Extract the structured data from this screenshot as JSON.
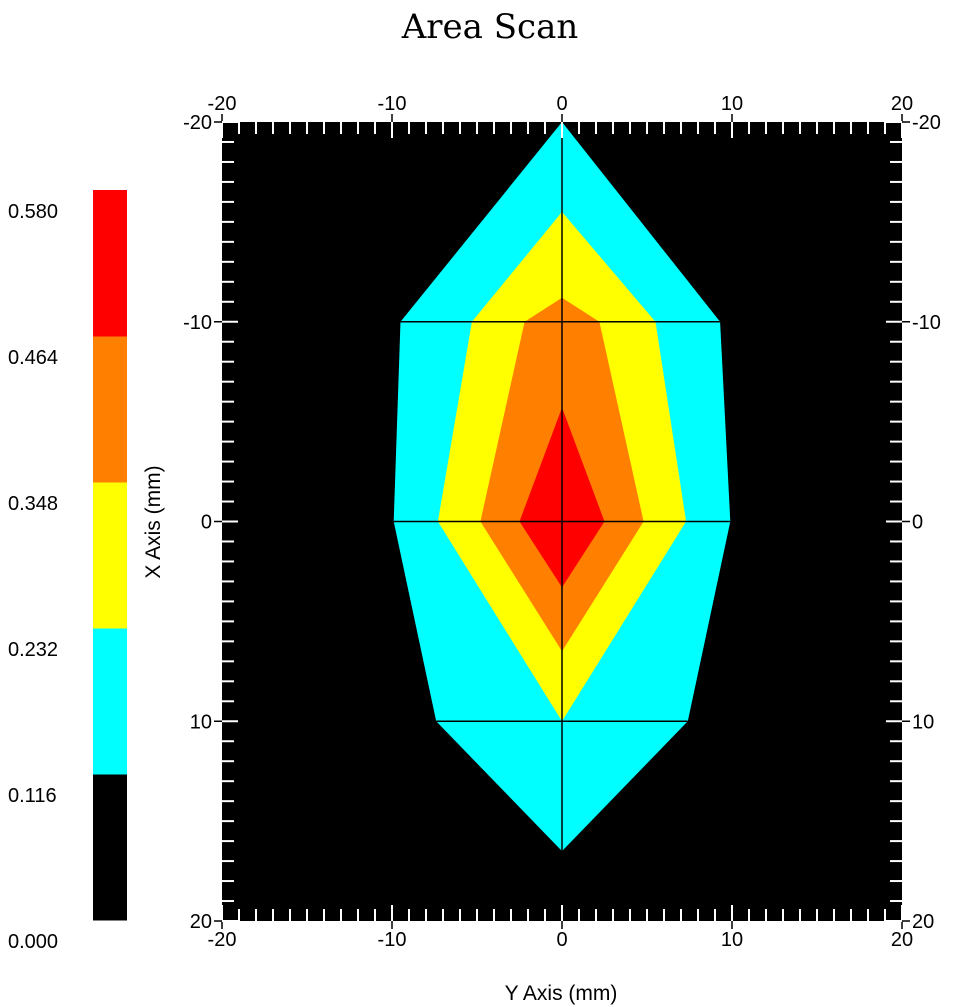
{
  "chart_data": {
    "type": "heatmap",
    "title": "Area Scan",
    "xlabel": "Y Axis (mm)",
    "ylabel": "X Axis (mm)",
    "xlim": [
      -20,
      20
    ],
    "ylim": [
      -20,
      20
    ],
    "y_inverted": true,
    "x_ticks": [
      "-20",
      "-10",
      "0",
      "10",
      "20"
    ],
    "y_ticks": [
      "-20",
      "-10",
      "0",
      "10",
      "20"
    ],
    "grid": {
      "x": [
        0
      ],
      "y": [
        -10,
        0,
        10
      ],
      "color": "#000000"
    },
    "colorbar": {
      "ticks": [
        "0.000",
        "0.116",
        "0.232",
        "0.348",
        "0.464",
        "0.580"
      ],
      "bands": [
        {
          "from": 0.0,
          "to": 0.116,
          "color": "#000000"
        },
        {
          "from": 0.116,
          "to": 0.232,
          "color": "#00FFFF"
        },
        {
          "from": 0.232,
          "to": 0.348,
          "color": "#FFFF00"
        },
        {
          "from": 0.348,
          "to": 0.464,
          "color": "#FF8000"
        },
        {
          "from": 0.464,
          "to": 0.58,
          "color": "#FF0000"
        }
      ]
    },
    "background_color": "#000000",
    "contours": [
      {
        "level": 0.116,
        "color": "#00FFFF",
        "points": [
          [
            0,
            -20
          ],
          [
            9.3,
            -10
          ],
          [
            9.9,
            0
          ],
          [
            7.4,
            10
          ],
          [
            0,
            16.5
          ],
          [
            -7.4,
            10
          ],
          [
            -9.9,
            0
          ],
          [
            -9.5,
            -10
          ]
        ]
      },
      {
        "level": 0.232,
        "color": "#FFFF00",
        "points": [
          [
            0,
            -15.5
          ],
          [
            5.5,
            -10
          ],
          [
            7.3,
            0
          ],
          [
            0,
            10
          ],
          [
            -7.3,
            0
          ],
          [
            -5.3,
            -10
          ]
        ]
      },
      {
        "level": 0.348,
        "color": "#FF8000",
        "points": [
          [
            0,
            -11.2
          ],
          [
            2.2,
            -10
          ],
          [
            4.8,
            0
          ],
          [
            0,
            6.5
          ],
          [
            -4.8,
            0
          ],
          [
            -2.2,
            -10
          ]
        ]
      },
      {
        "level": 0.464,
        "color": "#FF0000",
        "points": [
          [
            0,
            -5.7
          ],
          [
            2.5,
            0
          ],
          [
            0,
            3.3
          ],
          [
            -2.5,
            0
          ]
        ]
      }
    ]
  }
}
